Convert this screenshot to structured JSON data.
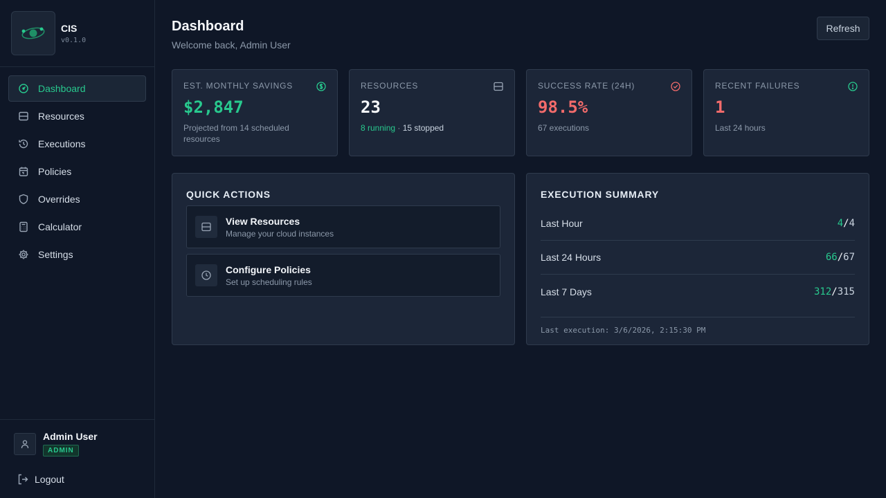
{
  "brand": {
    "name": "CIS",
    "version": "v0.1.0"
  },
  "nav": [
    {
      "label": "Dashboard",
      "icon": "gauge-icon",
      "active": true
    },
    {
      "label": "Resources",
      "icon": "server-icon"
    },
    {
      "label": "Executions",
      "icon": "history-icon"
    },
    {
      "label": "Policies",
      "icon": "calendar-icon"
    },
    {
      "label": "Overrides",
      "icon": "shield-icon"
    },
    {
      "label": "Calculator",
      "icon": "calculator-icon"
    },
    {
      "label": "Settings",
      "icon": "gear-icon"
    }
  ],
  "user": {
    "name": "Admin User",
    "role": "ADMIN",
    "logout_label": "Logout"
  },
  "header": {
    "title": "Dashboard",
    "subtitle": "Welcome back, Admin User",
    "refresh_label": "Refresh"
  },
  "stats": {
    "savings": {
      "label": "EST. MONTHLY SAVINGS",
      "value": "$2,847",
      "sub": "Projected from 14 scheduled resources",
      "icon": "dollar-icon"
    },
    "resources": {
      "label": "RESOURCES",
      "value": "23",
      "running": "8 running",
      "sep": " · ",
      "stopped": "15 stopped",
      "icon": "server-icon"
    },
    "success": {
      "label": "SUCCESS RATE (24H)",
      "value": "98.5%",
      "sub": "67 executions",
      "icon": "check-circle-icon"
    },
    "failures": {
      "label": "RECENT FAILURES",
      "value": "1",
      "sub": "Last 24 hours",
      "icon": "alert-circle-icon"
    }
  },
  "quick_actions": {
    "title": "QUICK ACTIONS",
    "items": [
      {
        "title": "View Resources",
        "desc": "Manage your cloud instances",
        "icon": "server-icon"
      },
      {
        "title": "Configure Policies",
        "desc": "Set up scheduling rules",
        "icon": "clock-icon"
      }
    ]
  },
  "execution_summary": {
    "title": "EXECUTION SUMMARY",
    "rows": [
      {
        "label": "Last Hour",
        "success": "4",
        "slash": "/",
        "total": "4"
      },
      {
        "label": "Last 24 Hours",
        "success": "66",
        "slash": "/",
        "total": "67"
      },
      {
        "label": "Last 7 Days",
        "success": "312",
        "slash": "/",
        "total": "315"
      }
    ],
    "last_execution": "Last execution: 3/6/2026, 2:15:30 PM"
  },
  "colors": {
    "accent": "#28c98e",
    "danger": "#f26b6b",
    "background": "#0f1727",
    "card": "#1c2638"
  }
}
